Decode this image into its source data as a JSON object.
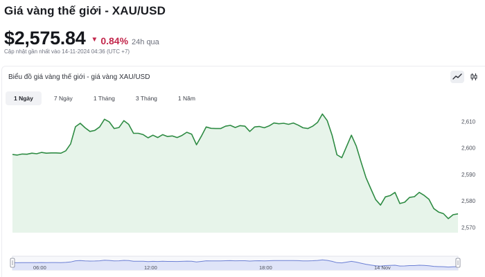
{
  "header": {
    "title": "Giá vàng thế giới - XAU/USD",
    "price": "$2,575.84",
    "change_pct": "0.84%",
    "change_period": "24h qua",
    "updated": "Cập nhật gần nhất vào 14-11-2024 04:36 (UTC +7)"
  },
  "chart_panel": {
    "title": "Biểu đồ giá vàng thế giới - giá vàng XAU/USD",
    "range_tabs": [
      {
        "label": "1 Ngày",
        "active": true
      },
      {
        "label": "7 Ngày",
        "active": false
      },
      {
        "label": "1 Tháng",
        "active": false
      },
      {
        "label": "3 Tháng",
        "active": false
      },
      {
        "label": "1 Năm",
        "active": false
      }
    ],
    "chart_types": [
      {
        "icon": "line-chart-icon",
        "active": true
      },
      {
        "icon": "candlestick-icon",
        "active": false
      }
    ]
  },
  "colors": {
    "line": "#2e8b43",
    "fill": "#e7f4ea",
    "down": "#c2264b",
    "navigator_fill": "#dfe4f8",
    "navigator_line": "#6b7fd4"
  },
  "chart_data": {
    "type": "area",
    "title": "",
    "xlabel": "",
    "ylabel": "",
    "ylim": [
      2568,
      2614
    ],
    "y_ticks": [
      2570,
      2580,
      2590,
      2600,
      2610
    ],
    "y_tick_labels": [
      "2,570",
      "2,580",
      "2,590",
      "2,600",
      "2,610"
    ],
    "navigator_labels": [
      "06:00",
      "12:00",
      "18:00",
      "14 Nov"
    ],
    "grid": false,
    "series": [
      {
        "values": [
          2597.5,
          2597.3,
          2597.7,
          2597.6,
          2598.0,
          2597.8,
          2598.3,
          2598.0,
          2598.1,
          2598.1,
          2598.0,
          2598.9,
          2601.5,
          2608.0,
          2609.3,
          2607.6,
          2606.2,
          2606.6,
          2607.9,
          2610.8,
          2609.8,
          2607.3,
          2607.7,
          2610.3,
          2608.9,
          2605.5,
          2605.5,
          2605.0,
          2603.8,
          2604.8,
          2603.9,
          2605.0,
          2604.3,
          2604.5,
          2603.9,
          2604.7,
          2605.9,
          2605.2,
          2601.2,
          2604.4,
          2607.9,
          2607.4,
          2607.3,
          2607.3,
          2608.2,
          2608.5,
          2607.7,
          2608.4,
          2608.2,
          2606.2,
          2607.9,
          2608.1,
          2607.6,
          2608.3,
          2609.4,
          2609.1,
          2609.3,
          2608.9,
          2609.4,
          2608.6,
          2607.6,
          2607.3,
          2608.2,
          2609.6,
          2612.8,
          2610.3,
          2604.8,
          2597.4,
          2596.3,
          2600.6,
          2604.8,
          2600.7,
          2594.6,
          2588.8,
          2584.6,
          2580.5,
          2578.4,
          2581.5,
          2582.0,
          2583.2,
          2579.0,
          2579.5,
          2581.3,
          2581.6,
          2583.2,
          2582.1,
          2580.6,
          2577.1,
          2575.8,
          2575.2,
          2573.3,
          2574.8,
          2575.1
        ]
      }
    ]
  }
}
